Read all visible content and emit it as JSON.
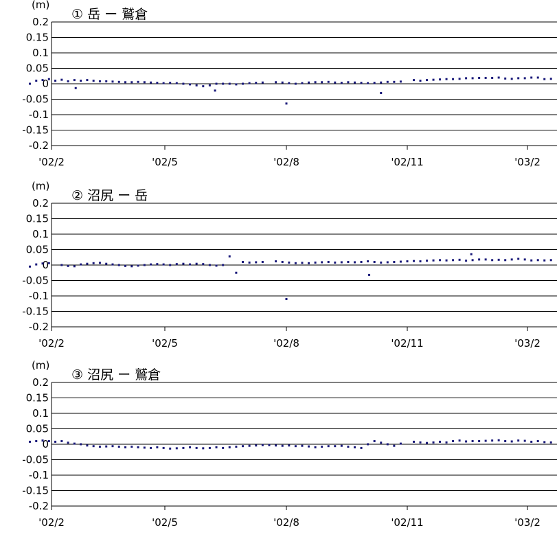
{
  "chart_data": [
    {
      "type": "scatter",
      "title": "① 岳 ー 鷲倉",
      "ylabel": "(m)",
      "ylim": [
        -0.2,
        0.2
      ],
      "ytick_labels": [
        "0.2",
        "0.15",
        "0.1",
        "0.05",
        "0",
        "-0.05",
        "-0.1",
        "-0.15",
        "-0.2"
      ],
      "xtick_labels": [
        "'02/2",
        "'02/5",
        "'02/8",
        "'02/11",
        "'03/2"
      ],
      "xlim": [
        "2002-01-15",
        "2003-03-01"
      ],
      "grid": true,
      "marker_color": "#1a1a7a",
      "series": [
        {
          "x": [
            "2002-01-15",
            "2002-01-20",
            "2002-01-25",
            "2002-01-30",
            "2002-02-04",
            "2002-02-09",
            "2002-02-14",
            "2002-02-19",
            "2002-02-24",
            "2002-03-01",
            "2002-03-06",
            "2002-03-11",
            "2002-03-16",
            "2002-03-21",
            "2002-03-26",
            "2002-03-31",
            "2002-04-05",
            "2002-04-10",
            "2002-04-15",
            "2002-04-20",
            "2002-04-25",
            "2002-04-30",
            "2002-05-05",
            "2002-05-10",
            "2002-05-15",
            "2002-05-20",
            "2002-05-25",
            "2002-05-30",
            "2002-06-04",
            "2002-06-09",
            "2002-06-14",
            "2002-06-19",
            "2002-06-24",
            "2002-06-29",
            "2002-07-04",
            "2002-07-09",
            "2002-07-14",
            "2002-07-24",
            "2002-07-29",
            "2002-08-03",
            "2002-08-08",
            "2002-08-13",
            "2002-08-18",
            "2002-08-23",
            "2002-08-28",
            "2002-09-02",
            "2002-09-07",
            "2002-09-12",
            "2002-09-17",
            "2002-09-22",
            "2002-09-27",
            "2002-10-02",
            "2002-10-07",
            "2002-10-12",
            "2002-10-17",
            "2002-10-22",
            "2002-10-27",
            "2002-11-06",
            "2002-11-11",
            "2002-11-16",
            "2002-11-21",
            "2002-11-26",
            "2002-12-01",
            "2002-12-06",
            "2002-12-11",
            "2002-12-16",
            "2002-12-21",
            "2002-12-26",
            "2002-12-31",
            "2003-01-05",
            "2003-01-10",
            "2003-01-15",
            "2003-01-20",
            "2003-01-25",
            "2003-01-30",
            "2003-02-04",
            "2003-02-09",
            "2003-02-14",
            "2003-02-19",
            "2003-02-24",
            "2003-03-01",
            "2002-02-20",
            "2002-06-08",
            "2002-08-01",
            "2002-10-12"
          ],
          "y": [
            0.0,
            0.01,
            0.012,
            0.015,
            0.01,
            0.013,
            0.008,
            0.012,
            0.01,
            0.012,
            0.01,
            0.008,
            0.008,
            0.007,
            0.006,
            0.005,
            0.005,
            0.006,
            0.005,
            0.004,
            0.003,
            0.002,
            0.003,
            0.002,
            0.0,
            -0.002,
            -0.005,
            -0.008,
            -0.005,
            0.0,
            0.0,
            0.0,
            -0.002,
            0.0,
            0.002,
            0.003,
            0.004,
            0.005,
            0.004,
            0.002,
            0.0,
            0.002,
            0.004,
            0.005,
            0.005,
            0.006,
            0.004,
            0.003,
            0.005,
            0.004,
            0.003,
            0.002,
            0.003,
            0.004,
            0.006,
            0.006,
            0.007,
            0.012,
            0.01,
            0.012,
            0.013,
            0.014,
            0.015,
            0.015,
            0.016,
            0.018,
            0.018,
            0.019,
            0.019,
            0.019,
            0.02,
            0.017,
            0.016,
            0.018,
            0.018,
            0.02,
            0.02,
            0.015,
            0.016,
            0.017,
            0.02,
            -0.014,
            -0.022,
            -0.064,
            -0.03
          ]
        }
      ]
    },
    {
      "type": "scatter",
      "title": "② 沼尻 ー 岳",
      "ylabel": "(m)",
      "ylim": [
        -0.2,
        0.2
      ],
      "ytick_labels": [
        "0.2",
        "0.15",
        "0.1",
        "0.05",
        "0",
        "-0.05",
        "-0.1",
        "-0.15",
        "-0.2"
      ],
      "xtick_labels": [
        "'02/2",
        "'02/5",
        "'02/8",
        "'02/11",
        "'03/2"
      ],
      "xlim": [
        "2002-01-15",
        "2003-03-01"
      ],
      "grid": true,
      "marker_color": "#1a1a7a",
      "series": [
        {
          "x": [
            "2002-01-15",
            "2002-01-20",
            "2002-01-25",
            "2002-01-30",
            "2002-02-09",
            "2002-02-14",
            "2002-02-19",
            "2002-02-24",
            "2002-03-01",
            "2002-03-06",
            "2002-03-11",
            "2002-03-16",
            "2002-03-21",
            "2002-03-26",
            "2002-03-31",
            "2002-04-05",
            "2002-04-10",
            "2002-04-15",
            "2002-04-20",
            "2002-04-25",
            "2002-04-30",
            "2002-05-05",
            "2002-05-10",
            "2002-05-15",
            "2002-05-20",
            "2002-05-25",
            "2002-05-30",
            "2002-06-04",
            "2002-06-09",
            "2002-06-14",
            "2002-06-19",
            "2002-06-29",
            "2002-07-04",
            "2002-07-09",
            "2002-07-14",
            "2002-07-24",
            "2002-07-29",
            "2002-08-03",
            "2002-08-08",
            "2002-08-13",
            "2002-08-18",
            "2002-08-23",
            "2002-08-28",
            "2002-09-02",
            "2002-09-07",
            "2002-09-12",
            "2002-09-17",
            "2002-09-22",
            "2002-09-27",
            "2002-10-02",
            "2002-10-07",
            "2002-10-12",
            "2002-10-17",
            "2002-10-22",
            "2002-10-27",
            "2002-11-01",
            "2002-11-06",
            "2002-11-11",
            "2002-11-16",
            "2002-11-21",
            "2002-11-26",
            "2002-12-01",
            "2002-12-06",
            "2002-12-11",
            "2002-12-16",
            "2002-12-21",
            "2002-12-26",
            "2002-12-31",
            "2003-01-05",
            "2003-01-10",
            "2003-01-15",
            "2003-01-20",
            "2003-01-25",
            "2003-01-30",
            "2003-02-04",
            "2003-02-09",
            "2003-02-14",
            "2003-02-19",
            "2003-02-24",
            "2003-03-01",
            "2002-06-24",
            "2002-08-01",
            "2002-10-03",
            "2002-12-20"
          ],
          "y": [
            -0.005,
            0.002,
            0.005,
            0.006,
            0.0,
            -0.003,
            -0.004,
            0.002,
            0.004,
            0.006,
            0.007,
            0.004,
            0.002,
            0.0,
            -0.003,
            -0.004,
            -0.002,
            0.0,
            0.002,
            0.003,
            0.002,
            0.0,
            0.003,
            0.004,
            0.002,
            0.004,
            0.003,
            0.0,
            -0.002,
            0.0,
            0.028,
            0.01,
            0.008,
            0.009,
            0.01,
            0.012,
            0.01,
            0.008,
            0.006,
            0.007,
            0.006,
            0.008,
            0.009,
            0.01,
            0.008,
            0.009,
            0.01,
            0.009,
            0.01,
            0.012,
            0.01,
            0.008,
            0.009,
            0.01,
            0.011,
            0.012,
            0.013,
            0.012,
            0.014,
            0.015,
            0.016,
            0.015,
            0.016,
            0.017,
            0.014,
            0.016,
            0.018,
            0.018,
            0.016,
            0.017,
            0.016,
            0.018,
            0.02,
            0.018,
            0.015,
            0.016,
            0.015,
            0.016,
            0.017,
            0.014,
            -0.025,
            -0.11,
            -0.032,
            0.035
          ]
        }
      ]
    },
    {
      "type": "scatter",
      "title": "③ 沼尻 ー 鷲倉",
      "ylabel": "(m)",
      "ylim": [
        -0.2,
        0.2
      ],
      "ytick_labels": [
        "0.2",
        "0.15",
        "0.1",
        "0.05",
        "0",
        "-0.05",
        "-0.1",
        "-0.15",
        "-0.2"
      ],
      "xtick_labels": [
        "'02/2",
        "'02/5",
        "'02/8",
        "'02/11",
        "'03/2"
      ],
      "xlim": [
        "2002-01-15",
        "2003-03-01"
      ],
      "grid": true,
      "marker_color": "#1a1a7a",
      "series": [
        {
          "x": [
            "2002-01-15",
            "2002-01-20",
            "2002-01-25",
            "2002-01-30",
            "2002-02-04",
            "2002-02-09",
            "2002-02-14",
            "2002-02-19",
            "2002-02-24",
            "2002-03-01",
            "2002-03-06",
            "2002-03-11",
            "2002-03-16",
            "2002-03-21",
            "2002-03-26",
            "2002-03-31",
            "2002-04-05",
            "2002-04-10",
            "2002-04-15",
            "2002-04-20",
            "2002-04-25",
            "2002-04-30",
            "2002-05-05",
            "2002-05-10",
            "2002-05-15",
            "2002-05-20",
            "2002-05-25",
            "2002-05-30",
            "2002-06-04",
            "2002-06-09",
            "2002-06-14",
            "2002-06-19",
            "2002-06-24",
            "2002-06-29",
            "2002-07-04",
            "2002-07-09",
            "2002-07-14",
            "2002-07-19",
            "2002-07-24",
            "2002-07-29",
            "2002-08-03",
            "2002-08-08",
            "2002-08-13",
            "2002-08-18",
            "2002-08-23",
            "2002-08-28",
            "2002-09-02",
            "2002-09-07",
            "2002-09-12",
            "2002-09-17",
            "2002-09-22",
            "2002-09-27",
            "2002-10-02",
            "2002-10-07",
            "2002-10-12",
            "2002-10-17",
            "2002-10-22",
            "2002-10-27",
            "2002-11-06",
            "2002-11-11",
            "2002-11-16",
            "2002-11-21",
            "2002-11-26",
            "2002-12-01",
            "2002-12-06",
            "2002-12-11",
            "2002-12-16",
            "2002-12-21",
            "2002-12-26",
            "2002-12-31",
            "2003-01-05",
            "2003-01-10",
            "2003-01-15",
            "2003-01-20",
            "2003-01-25",
            "2003-01-30",
            "2003-02-04",
            "2003-02-09",
            "2003-02-14",
            "2003-02-19",
            "2003-02-24",
            "2003-03-01"
          ],
          "y": [
            0.008,
            0.01,
            0.012,
            0.01,
            0.008,
            0.01,
            0.005,
            0.002,
            0.0,
            -0.004,
            -0.006,
            -0.008,
            -0.007,
            -0.006,
            -0.008,
            -0.01,
            -0.008,
            -0.01,
            -0.011,
            -0.012,
            -0.01,
            -0.012,
            -0.014,
            -0.013,
            -0.012,
            -0.01,
            -0.012,
            -0.013,
            -0.012,
            -0.01,
            -0.012,
            -0.01,
            -0.008,
            -0.006,
            -0.005,
            -0.004,
            -0.003,
            -0.003,
            -0.004,
            -0.005,
            -0.004,
            -0.006,
            -0.005,
            -0.007,
            -0.01,
            -0.008,
            -0.006,
            -0.006,
            -0.005,
            -0.008,
            -0.01,
            -0.012,
            0.0,
            0.01,
            0.005,
            0.0,
            -0.005,
            0.002,
            0.008,
            0.006,
            0.004,
            0.006,
            0.008,
            0.006,
            0.01,
            0.012,
            0.009,
            0.01,
            0.01,
            0.011,
            0.012,
            0.013,
            0.01,
            0.009,
            0.012,
            0.011,
            0.008,
            0.01,
            0.007,
            0.006,
            0.008,
            0.006
          ]
        }
      ]
    }
  ]
}
